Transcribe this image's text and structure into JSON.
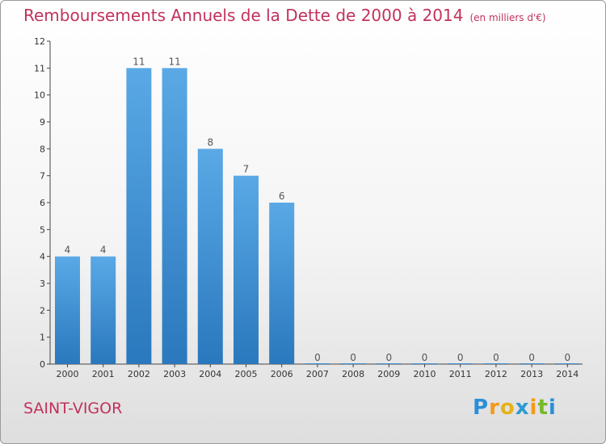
{
  "header": {
    "title": "Remboursements Annuels de la Dette de 2000 à 2014",
    "subtitle": "(en milliers d'€)"
  },
  "footer": {
    "city": "SAINT-VIGOR",
    "logo_letters": [
      "P",
      "r",
      "o",
      "x",
      "i",
      "t",
      "i"
    ]
  },
  "colors": {
    "title": "#c1325c",
    "bar": "#2f86cf",
    "bar_light": "#5aa9e6"
  },
  "chart_data": {
    "type": "bar",
    "title": "Remboursements Annuels de la Dette de 2000 à 2014",
    "subtitle": "(en milliers d'€)",
    "categories": [
      "2000",
      "2001",
      "2002",
      "2003",
      "2004",
      "2005",
      "2006",
      "2007",
      "2008",
      "2009",
      "2010",
      "2011",
      "2012",
      "2013",
      "2014"
    ],
    "values": [
      4,
      4,
      11,
      11,
      8,
      7,
      6,
      0,
      0,
      0,
      0,
      0,
      0,
      0,
      0
    ],
    "yticks": [
      0,
      1,
      2,
      3,
      4,
      5,
      6,
      7,
      8,
      9,
      10,
      11,
      12
    ],
    "ylim": [
      0,
      12
    ],
    "xlabel": "",
    "ylabel": "",
    "grid": false
  }
}
